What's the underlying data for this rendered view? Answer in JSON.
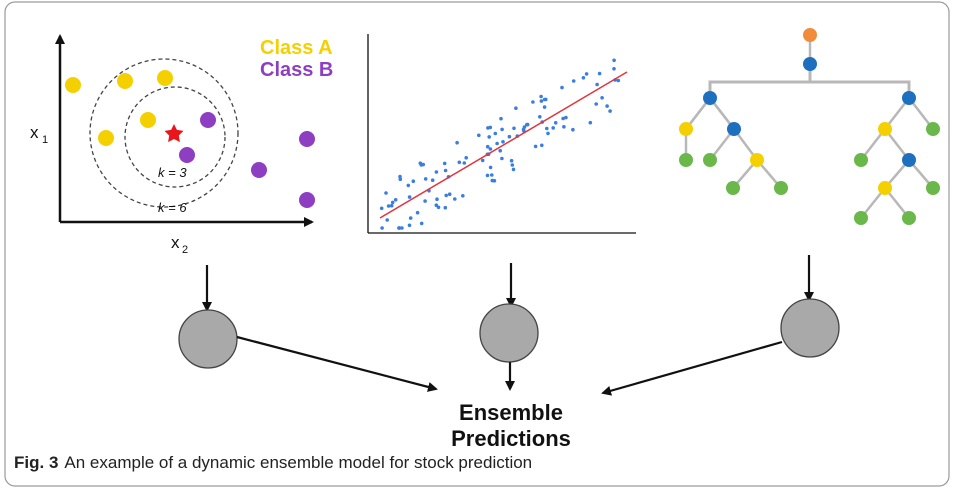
{
  "knn": {
    "class_a_label": "Class A",
    "class_b_label": "Class B",
    "y_axis_label": "x",
    "y_axis_sub": "1",
    "x_axis_label": "x",
    "x_axis_sub": "2",
    "k_inner": "k = 3",
    "k_outer": "k = 6",
    "colors": {
      "class_a": "#f5d000",
      "class_b": "#8e3fc1",
      "query": "#e8151b"
    }
  },
  "regression": {
    "point_color": "#3a7ee0",
    "line_color": "#e0363e"
  },
  "tree": {
    "colors": {
      "root": "#f08c3a",
      "internal": "#1f6fbf",
      "split": "#f5d000",
      "leaf": "#6ab84a",
      "edge": "#b8b8b8"
    }
  },
  "ensemble": {
    "label_line1": "Ensemble",
    "label_line2": "Predictions",
    "node_color": "#a9a9a9"
  },
  "caption": {
    "figure_label": "Fig. 3",
    "text": "An example of a dynamic ensemble model for stock prediction"
  }
}
